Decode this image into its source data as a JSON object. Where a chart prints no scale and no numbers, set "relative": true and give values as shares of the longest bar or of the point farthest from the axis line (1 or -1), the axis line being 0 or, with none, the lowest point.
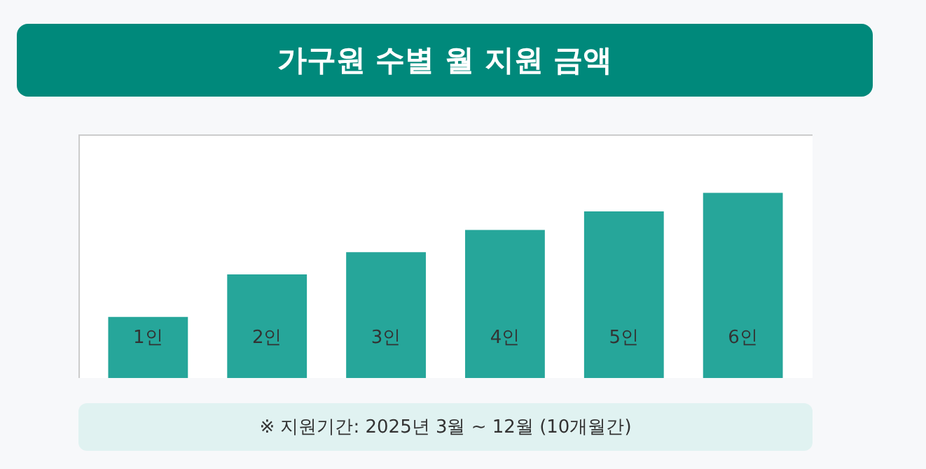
{
  "chart_data": {
    "type": "bar",
    "title": "가구원 수별 월 지원 금액",
    "categories": [
      "1인",
      "2인",
      "3인",
      "4인",
      "5인",
      "6인"
    ],
    "values": [
      0.33,
      0.56,
      0.68,
      0.8,
      0.9,
      1
    ],
    "color": "#26a69a",
    "relative": true,
    "annotations": [
      "※ 지원기간: 2025년 3월 ~ 12월 (10개월간)"
    ]
  }
}
